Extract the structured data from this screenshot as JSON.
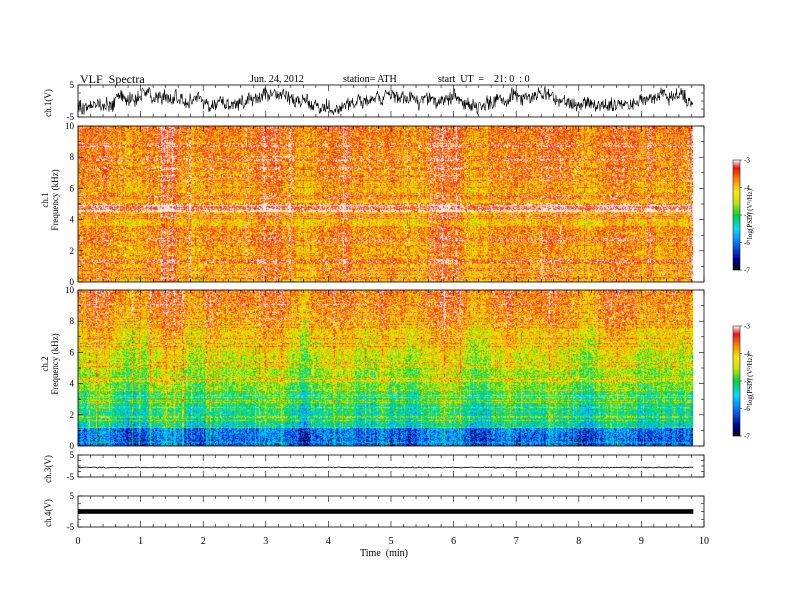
{
  "header": {
    "title": "VLF  Spectra",
    "date": "Jun. 24, 2012",
    "station": "station= ATH",
    "start": "start  UT  =    21: 0  : 0"
  },
  "chart_data": [
    {
      "type": "line",
      "panel": "ch1-waveform",
      "ylabel": "ch.1(V)",
      "ylim": [
        -5,
        5
      ],
      "yticks": [
        "5",
        "-5"
      ],
      "xlim": [
        0,
        10
      ],
      "description_values": {
        "mean": 0,
        "range": [
          -5,
          5
        ]
      }
    },
    {
      "type": "heatmap",
      "panel": "ch1-spectrogram",
      "ylabel": "ch.1\nFrequency (kHz)",
      "ylim": [
        0,
        10
      ],
      "yticks": [
        "0",
        "2",
        "4",
        "6",
        "8",
        "10"
      ],
      "xlim": [
        0,
        9.83
      ],
      "colorbar": {
        "label": "log(PSD) (V²/Hz)",
        "range": [
          -7,
          -3
        ],
        "ticks": [
          "-3",
          "-4",
          "-5",
          "-6",
          "-7"
        ]
      }
    },
    {
      "type": "heatmap",
      "panel": "ch2-spectrogram",
      "ylabel": "ch.2\nFrequency (kHz)",
      "ylim": [
        0,
        10
      ],
      "yticks": [
        "0",
        "2",
        "4",
        "6",
        "8",
        "10"
      ],
      "xlim": [
        0,
        9.83
      ],
      "colorbar": {
        "label": "log(PSD) (V²/Hz)",
        "range": [
          -7,
          -3
        ],
        "ticks": [
          "-3",
          "-4",
          "-5",
          "-6",
          "-7"
        ]
      }
    },
    {
      "type": "line",
      "panel": "ch3-waveform",
      "ylabel": "ch.3(V)",
      "ylim": [
        -5,
        5
      ],
      "yticks": [
        "5",
        "-5"
      ]
    },
    {
      "type": "line",
      "panel": "ch4-waveform",
      "ylabel": "ch.4(V)",
      "ylim": [
        -5,
        5
      ],
      "yticks": [
        "5",
        "-5"
      ]
    }
  ],
  "xaxis": {
    "label": "Time  (min)",
    "ticks": [
      "0",
      "1",
      "2",
      "3",
      "4",
      "5",
      "6",
      "7",
      "8",
      "9",
      "10"
    ]
  },
  "labels": {
    "ch1v": "ch.1(V)",
    "ch1f": "ch.1\nFrequency (kHz)",
    "ch2f": "ch.2\nFrequency (kHz)",
    "ch3v": "ch.3(V)",
    "ch4v": "ch.4(V)",
    "cbar": "log(PSD) (V²/Hz)"
  }
}
